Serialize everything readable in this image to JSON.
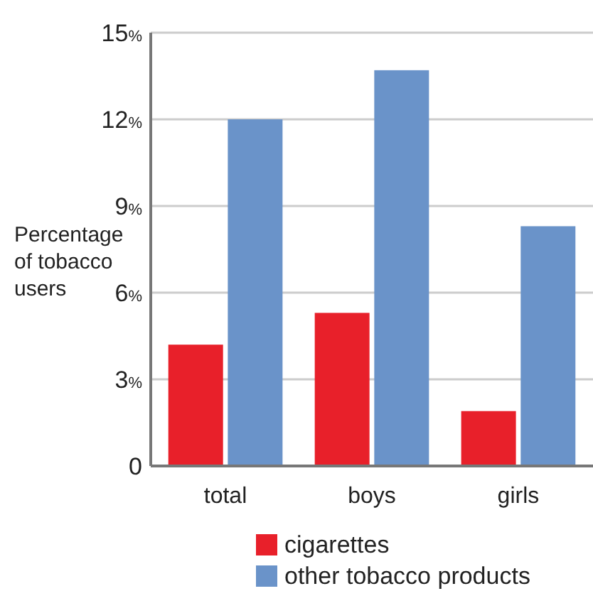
{
  "chart_data": {
    "type": "bar",
    "ylabel": "Percentage of tobacco users",
    "categories": [
      "total",
      "boys",
      "girls"
    ],
    "series": [
      {
        "name": "cigarettes",
        "color": "#e8202a",
        "values": [
          4.2,
          5.3,
          1.9
        ]
      },
      {
        "name": "other tobacco products",
        "color": "#6a93c9",
        "values": [
          12.0,
          13.7,
          8.3
        ]
      }
    ],
    "ylim": [
      0,
      15
    ],
    "yticks": [
      0,
      {
        "value": 3,
        "label": "3%"
      },
      {
        "value": 6,
        "label": "6%"
      },
      {
        "value": 9,
        "label": "9%"
      },
      {
        "value": 12,
        "label": "12%"
      },
      {
        "value": 15,
        "label": "15%"
      }
    ],
    "grid": "y",
    "legend": "bottom"
  }
}
